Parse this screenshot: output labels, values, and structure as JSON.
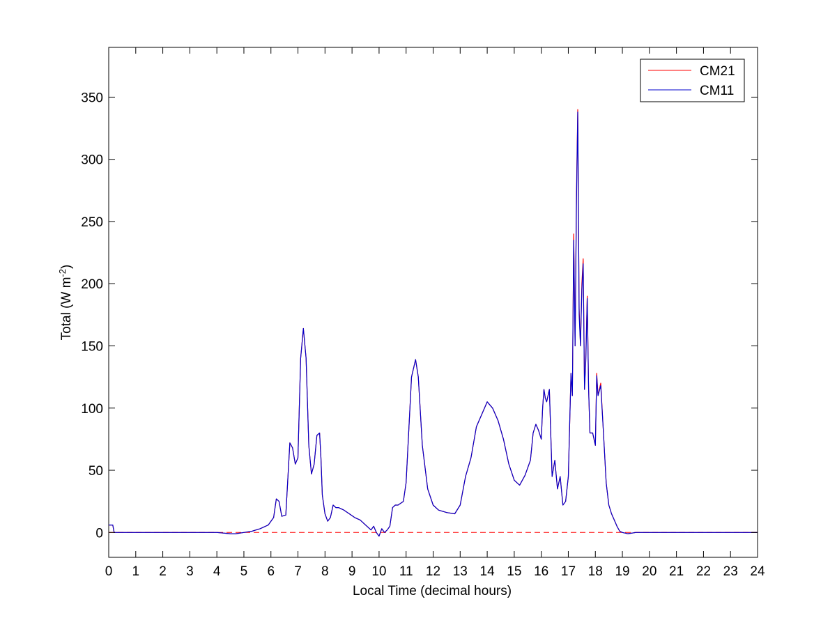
{
  "chart_data": {
    "type": "line",
    "title": "",
    "xlabel": "Local Time (decimal hours)",
    "ylabel": {
      "base": "Total (W m",
      "sup": "-2",
      "close": ")"
    },
    "xlim": [
      0,
      24
    ],
    "ylim": [
      -20,
      390
    ],
    "xticks": [
      "0",
      "1",
      "2",
      "3",
      "4",
      "5",
      "6",
      "7",
      "8",
      "9",
      "10",
      "11",
      "12",
      "13",
      "14",
      "15",
      "16",
      "17",
      "18",
      "19",
      "20",
      "21",
      "22",
      "23",
      "24"
    ],
    "yticks": [
      "0",
      "50",
      "100",
      "150",
      "200",
      "250",
      "300",
      "350"
    ],
    "grid": false,
    "legend_position": "top-right",
    "reference_line": {
      "y": 0,
      "style": "dashed",
      "color": "#ff0000"
    },
    "series": [
      {
        "name": "CM21",
        "color": "#ff0000",
        "x": [
          0,
          0.15,
          0.2,
          0.5,
          1,
          2,
          3,
          4,
          4.5,
          4.7,
          5,
          5.3,
          5.6,
          5.9,
          6.1,
          6.2,
          6.3,
          6.4,
          6.55,
          6.7,
          6.8,
          6.9,
          7,
          7.1,
          7.2,
          7.3,
          7.4,
          7.5,
          7.6,
          7.7,
          7.8,
          7.85,
          7.9,
          8,
          8.1,
          8.2,
          8.3,
          8.4,
          8.5,
          8.7,
          8.9,
          9.1,
          9.3,
          9.5,
          9.7,
          9.8,
          9.9,
          10,
          10.1,
          10.2,
          10.3,
          10.4,
          10.5,
          10.6,
          10.7,
          10.9,
          11,
          11.2,
          11.35,
          11.45,
          11.6,
          11.8,
          12,
          12.2,
          12.5,
          12.8,
          13,
          13.2,
          13.4,
          13.6,
          13.8,
          14,
          14.2,
          14.4,
          14.6,
          14.8,
          15,
          15.2,
          15.4,
          15.6,
          15.7,
          15.8,
          15.9,
          16,
          16.05,
          16.1,
          16.15,
          16.2,
          16.3,
          16.4,
          16.5,
          16.6,
          16.7,
          16.8,
          16.9,
          17,
          17.1,
          17.15,
          17.2,
          17.25,
          17.3,
          17.35,
          17.4,
          17.45,
          17.5,
          17.55,
          17.6,
          17.65,
          17.7,
          17.75,
          17.8,
          17.9,
          18,
          18.05,
          18.1,
          18.2,
          18.3,
          18.4,
          18.5,
          18.6,
          18.7,
          18.8,
          18.9,
          19,
          19.2,
          19.5,
          20,
          21,
          22,
          23,
          24
        ],
        "y": [
          6,
          6,
          0,
          0,
          0,
          0,
          0,
          0,
          -1,
          -1,
          0,
          1,
          3,
          6,
          12,
          27,
          25,
          13,
          14,
          72,
          68,
          55,
          60,
          140,
          164,
          140,
          70,
          47,
          55,
          78,
          80,
          60,
          30,
          15,
          9,
          12,
          22,
          20,
          20,
          18,
          15,
          12,
          10,
          6,
          2,
          5,
          0,
          -3,
          3,
          0,
          2,
          5,
          20,
          22,
          22,
          25,
          40,
          125,
          139,
          125,
          70,
          35,
          22,
          18,
          16,
          15,
          22,
          45,
          60,
          85,
          95,
          105,
          100,
          90,
          75,
          55,
          42,
          38,
          46,
          58,
          80,
          87,
          82,
          75,
          100,
          115,
          108,
          105,
          115,
          45,
          58,
          35,
          45,
          22,
          25,
          45,
          128,
          110,
          240,
          150,
          270,
          340,
          180,
          150,
          200,
          220,
          115,
          145,
          190,
          115,
          80,
          80,
          70,
          128,
          110,
          120,
          80,
          40,
          22,
          15,
          10,
          5,
          1,
          0,
          -1,
          0,
          0,
          0,
          0,
          0,
          0
        ]
      },
      {
        "name": "CM11",
        "color": "#0000cc",
        "x": [
          0,
          0.15,
          0.2,
          0.5,
          1,
          2,
          3,
          4,
          4.5,
          4.7,
          5,
          5.3,
          5.6,
          5.9,
          6.1,
          6.2,
          6.3,
          6.4,
          6.55,
          6.7,
          6.8,
          6.9,
          7,
          7.1,
          7.2,
          7.3,
          7.4,
          7.5,
          7.6,
          7.7,
          7.8,
          7.85,
          7.9,
          8,
          8.1,
          8.2,
          8.3,
          8.4,
          8.5,
          8.7,
          8.9,
          9.1,
          9.3,
          9.5,
          9.7,
          9.8,
          9.9,
          10,
          10.1,
          10.2,
          10.3,
          10.4,
          10.5,
          10.6,
          10.7,
          10.9,
          11,
          11.2,
          11.35,
          11.45,
          11.6,
          11.8,
          12,
          12.2,
          12.5,
          12.8,
          13,
          13.2,
          13.4,
          13.6,
          13.8,
          14,
          14.2,
          14.4,
          14.6,
          14.8,
          15,
          15.2,
          15.4,
          15.6,
          15.7,
          15.8,
          15.9,
          16,
          16.05,
          16.1,
          16.15,
          16.2,
          16.3,
          16.4,
          16.5,
          16.6,
          16.7,
          16.8,
          16.9,
          17,
          17.1,
          17.15,
          17.2,
          17.25,
          17.3,
          17.35,
          17.4,
          17.45,
          17.5,
          17.55,
          17.6,
          17.65,
          17.7,
          17.75,
          17.8,
          17.9,
          18,
          18.05,
          18.1,
          18.2,
          18.3,
          18.4,
          18.5,
          18.6,
          18.7,
          18.8,
          18.9,
          19,
          19.2,
          19.5,
          20,
          21,
          22,
          23,
          24
        ],
        "y": [
          6,
          6,
          0,
          0,
          0,
          0,
          0,
          0,
          -1,
          -1,
          0,
          1,
          3,
          6,
          12,
          27,
          25,
          13,
          14,
          72,
          68,
          55,
          60,
          140,
          164,
          140,
          70,
          47,
          55,
          78,
          80,
          60,
          30,
          15,
          9,
          12,
          22,
          20,
          20,
          18,
          15,
          12,
          10,
          6,
          2,
          5,
          0,
          -3,
          3,
          0,
          2,
          5,
          20,
          22,
          22,
          25,
          40,
          125,
          139,
          125,
          70,
          35,
          22,
          18,
          16,
          15,
          22,
          45,
          60,
          85,
          95,
          105,
          100,
          90,
          75,
          55,
          42,
          38,
          46,
          58,
          80,
          87,
          82,
          75,
          100,
          115,
          108,
          105,
          115,
          45,
          58,
          35,
          45,
          22,
          25,
          45,
          128,
          110,
          235,
          150,
          262,
          338,
          175,
          150,
          195,
          216,
          115,
          140,
          188,
          115,
          80,
          80,
          70,
          126,
          110,
          118,
          80,
          40,
          22,
          15,
          10,
          5,
          1,
          0,
          -1,
          0,
          0,
          0,
          0,
          0,
          0
        ]
      }
    ]
  }
}
